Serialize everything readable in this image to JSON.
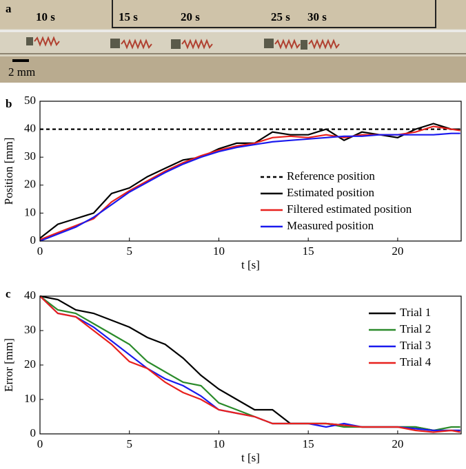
{
  "panel_a": {
    "label": "a",
    "time_labels": [
      "10 s",
      "15 s",
      "20 s",
      "25 s",
      "30 s"
    ],
    "scale_bar": "2 mm"
  },
  "chart_data": [
    {
      "type": "line",
      "panel_label": "b",
      "xlabel": "t [s]",
      "ylabel": "Position [mm]",
      "x": [
        0,
        1,
        2,
        3,
        4,
        5,
        6,
        7,
        8,
        9,
        10,
        11,
        12,
        13,
        14,
        15,
        16,
        17,
        18,
        19,
        20,
        21,
        22,
        23,
        23.5
      ],
      "series": [
        {
          "name": "Reference position",
          "color": "#000000",
          "dash": "dashed",
          "values": [
            40,
            40,
            40,
            40,
            40,
            40,
            40,
            40,
            40,
            40,
            40,
            40,
            40,
            40,
            40,
            40,
            40,
            40,
            40,
            40,
            40,
            40,
            40,
            40,
            40
          ]
        },
        {
          "name": "Estimated position",
          "color": "#000000",
          "values": [
            1,
            6,
            8,
            10,
            17,
            19,
            23,
            26,
            29,
            30,
            33,
            35,
            35,
            39,
            38,
            38,
            40,
            36,
            39,
            38,
            37,
            40,
            42,
            40,
            40
          ]
        },
        {
          "name": "Filtered estimated position",
          "color": "#e8201c",
          "values": [
            0.5,
            3,
            5.5,
            8,
            14,
            18,
            21.5,
            25,
            28,
            30.5,
            32.5,
            34,
            35,
            37,
            37.5,
            37,
            38,
            37,
            38,
            38,
            38,
            39,
            41,
            40,
            39.5
          ]
        },
        {
          "name": "Measured position",
          "color": "#1a1aee",
          "values": [
            0,
            2.5,
            5,
            8.5,
            13,
            17.5,
            21,
            24.5,
            27.5,
            30,
            32,
            33.5,
            34.5,
            35.5,
            36,
            36.5,
            37,
            37.5,
            37.5,
            38,
            38,
            38,
            38,
            38.5,
            38.5
          ]
        }
      ],
      "xlim": [
        0,
        23.55
      ],
      "xticks": [
        0,
        5,
        10,
        15,
        20
      ],
      "ylim": [
        0,
        50
      ],
      "yticks": [
        0,
        10,
        20,
        30,
        40,
        50
      ],
      "legend": "center right"
    },
    {
      "type": "line",
      "panel_label": "c",
      "xlabel": "t [s]",
      "ylabel": "Error [mm]",
      "x": [
        0,
        1,
        2,
        3,
        4,
        5,
        6,
        7,
        8,
        9,
        10,
        11,
        12,
        13,
        14,
        15,
        16,
        17,
        18,
        19,
        20,
        21,
        22,
        23,
        23.5
      ],
      "series": [
        {
          "name": "Trial 1",
          "color": "#000000",
          "values": [
            40,
            39,
            36,
            35,
            33,
            31,
            28,
            26,
            22,
            17,
            13,
            10,
            7,
            7,
            3,
            3,
            3,
            2.5,
            2,
            2,
            2,
            2,
            1,
            1,
            1
          ]
        },
        {
          "name": "Trial 2",
          "color": "#2a8a2a",
          "values": [
            40,
            36,
            35,
            32,
            29,
            26,
            21,
            18,
            15,
            14,
            9,
            7,
            5,
            3,
            3,
            3,
            3,
            2,
            2,
            2,
            2,
            2,
            1,
            2,
            2
          ]
        },
        {
          "name": "Trial 3",
          "color": "#1a1aee",
          "values": [
            40,
            35,
            34,
            31,
            27,
            23,
            19,
            16,
            14,
            11,
            7,
            6,
            5,
            3,
            3,
            3,
            2,
            3,
            2,
            2,
            2,
            1.5,
            1,
            1,
            1
          ]
        },
        {
          "name": "Trial 4",
          "color": "#e8201c",
          "values": [
            40,
            35,
            34,
            30,
            26,
            21,
            19,
            15,
            12,
            10,
            7,
            6,
            5,
            3,
            3,
            3,
            3,
            2.5,
            2,
            2,
            2,
            1,
            0.5,
            1,
            0.5
          ]
        }
      ],
      "xlim": [
        0,
        23.55
      ],
      "xticks": [
        0,
        5,
        10,
        15,
        20
      ],
      "ylim": [
        0,
        40
      ],
      "yticks": [
        0,
        10,
        20,
        30,
        40
      ],
      "legend": "upper right"
    }
  ]
}
